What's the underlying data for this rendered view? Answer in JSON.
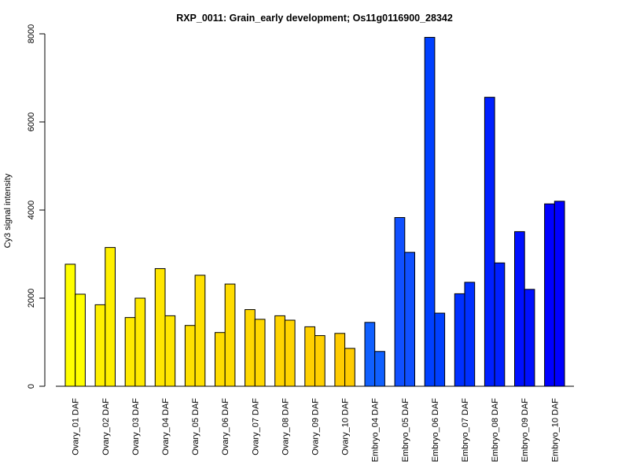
{
  "chart_data": {
    "type": "bar",
    "title": "RXP_0011: Grain_early development; Os11g0116900_28342",
    "xlabel": "",
    "ylabel": "Cy3 signal intensity",
    "ylim": [
      0,
      8000
    ],
    "yticks": [
      0,
      2000,
      4000,
      6000,
      8000
    ],
    "grid": false,
    "legend": "none",
    "categories": [
      "Ovary_01 DAF",
      "Ovary_02 DAF",
      "Ovary_03 DAF",
      "Ovary_04 DAF",
      "Ovary_05 DAF",
      "Ovary_06 DAF",
      "Ovary_07 DAF",
      "Ovary_08 DAF",
      "Ovary_09 DAF",
      "Ovary_10 DAF",
      "Embryo_04 DAF",
      "Embryo_05 DAF",
      "Embryo_06 DAF",
      "Embryo_07 DAF",
      "Embryo_08 DAF",
      "Embryo_09 DAF",
      "Embryo_10 DAF"
    ],
    "colors": [
      "#ffff00",
      "#fff000",
      "#ffea00",
      "#ffe600",
      "#ffe000",
      "#ffdc00",
      "#ffd800",
      "#ffd400",
      "#ffd000",
      "#ffcc00",
      "#1060ff",
      "#1050ff",
      "#0040ff",
      "#0030ff",
      "#0020ff",
      "#0010ff",
      "#0000ff"
    ],
    "series": [
      {
        "values": [
          2770,
          1850,
          1560,
          2670,
          1380,
          1220,
          1740,
          1600,
          1350,
          1200,
          1450,
          3830,
          7920,
          2100,
          6560,
          3510,
          4140
        ]
      },
      {
        "values": [
          2090,
          3150,
          2000,
          1600,
          2520,
          2320,
          1520,
          1500,
          1150,
          860,
          790,
          3040,
          1660,
          2360,
          2800,
          2200,
          4200
        ]
      }
    ]
  }
}
